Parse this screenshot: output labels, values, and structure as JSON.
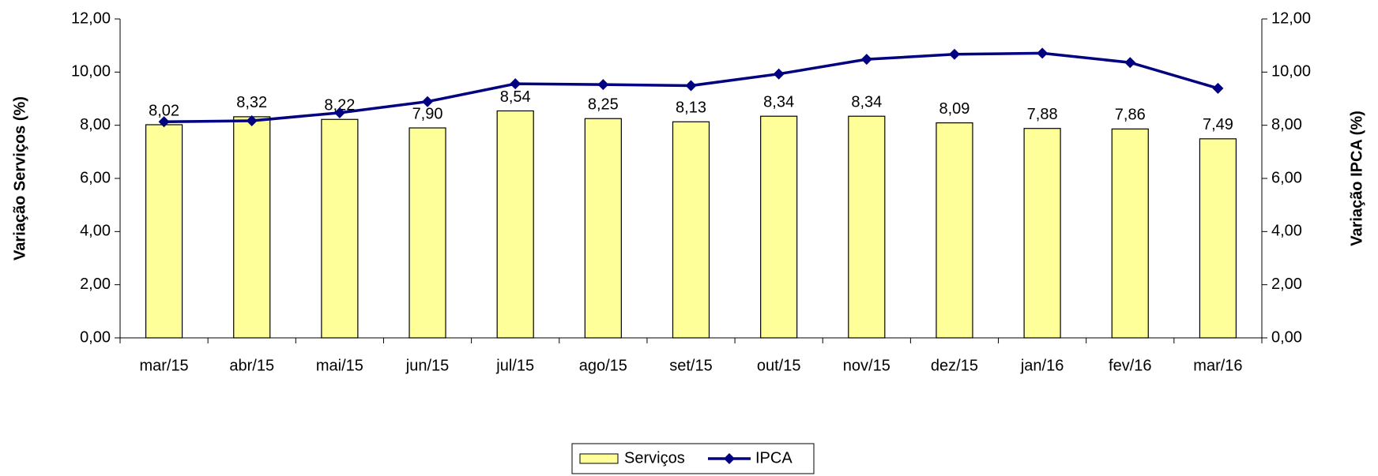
{
  "chart_data": {
    "type": "bar-line",
    "categories": [
      "mar/15",
      "abr/15",
      "mai/15",
      "jun/15",
      "jul/15",
      "ago/15",
      "set/15",
      "out/15",
      "nov/15",
      "dez/15",
      "jan/16",
      "fev/16",
      "mar/16"
    ],
    "series": [
      {
        "name": "Serviços",
        "type": "bar",
        "color": "#ffff99",
        "values": [
          8.02,
          8.32,
          8.22,
          7.9,
          8.54,
          8.25,
          8.13,
          8.34,
          8.34,
          8.09,
          7.88,
          7.86,
          7.49
        ],
        "value_labels": [
          "8,02",
          "8,32",
          "8,22",
          "7,90",
          "8,54",
          "8,25",
          "8,13",
          "8,34",
          "8,34",
          "8,09",
          "7,88",
          "7,86",
          "7,49"
        ]
      },
      {
        "name": "IPCA",
        "type": "line",
        "axis": "y2",
        "color": "#000080",
        "values": [
          8.13,
          8.17,
          8.47,
          8.89,
          9.56,
          9.53,
          9.49,
          9.93,
          10.48,
          10.67,
          10.71,
          10.36,
          9.39
        ]
      }
    ],
    "ylabel": "Variação Serviços (%)",
    "y2label": "Variação IPCA (%)",
    "ylim": [
      0,
      12
    ],
    "yticks": [
      {
        "value": 0,
        "label": "0,00"
      },
      {
        "value": 2,
        "label": "2,00"
      },
      {
        "value": 4,
        "label": "4,00"
      },
      {
        "value": 6,
        "label": "6,00"
      },
      {
        "value": 8,
        "label": "8,00"
      },
      {
        "value": 10,
        "label": "10,00"
      },
      {
        "value": 12,
        "label": "12,00"
      }
    ],
    "y2lim": [
      0,
      12
    ],
    "y2ticks": [
      {
        "value": 0,
        "label": "0,00"
      },
      {
        "value": 2,
        "label": "2,00"
      },
      {
        "value": 4,
        "label": "4,00"
      },
      {
        "value": 6,
        "label": "6,00"
      },
      {
        "value": 8,
        "label": "8,00"
      },
      {
        "value": 10,
        "label": "10,00"
      },
      {
        "value": 12,
        "label": "12,00"
      }
    ],
    "legend": "bottom"
  }
}
